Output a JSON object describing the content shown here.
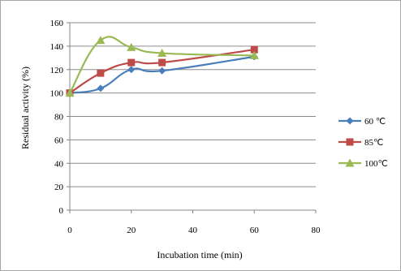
{
  "chart_data": {
    "type": "line",
    "title": "",
    "xlabel": "Incubation time (min)",
    "ylabel": "Residual activity (%)",
    "xlim": [
      0,
      80
    ],
    "ylim": [
      0,
      160
    ],
    "xticks": [
      0,
      20,
      40,
      60,
      80
    ],
    "yticks": [
      0,
      20,
      40,
      60,
      80,
      100,
      120,
      140,
      160
    ],
    "grid": "horizontal",
    "legend_position": "right",
    "series": [
      {
        "name": "60 ℃",
        "color": "#4a7ebb",
        "marker": "diamond",
        "x": [
          0,
          10,
          20,
          30,
          60
        ],
        "y": [
          100,
          104,
          120,
          119,
          131
        ]
      },
      {
        "name": "85℃",
        "color": "#be4b48",
        "marker": "square",
        "x": [
          0,
          10,
          20,
          30,
          60
        ],
        "y": [
          100,
          117,
          126,
          126,
          137
        ]
      },
      {
        "name": "100℃",
        "color": "#98b954",
        "marker": "triangle",
        "x": [
          0,
          10,
          20,
          30,
          60
        ],
        "y": [
          100,
          145,
          139,
          134,
          132
        ]
      }
    ]
  }
}
